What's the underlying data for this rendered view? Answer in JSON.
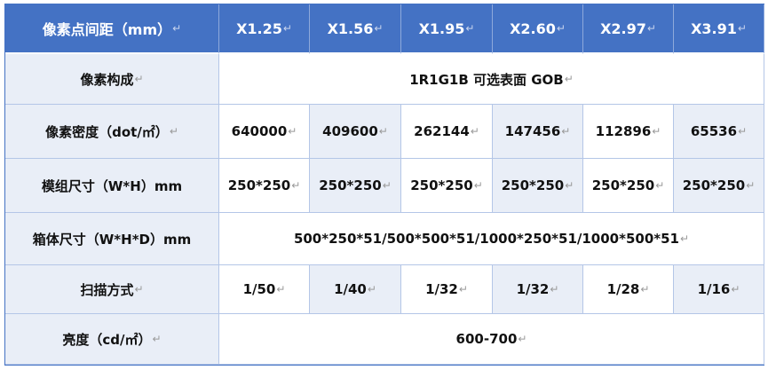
{
  "header": {
    "label": "像素点间距（mm）",
    "columns": [
      "X1.25",
      "X1.56",
      "X1.95",
      "X2.60",
      "X2.97",
      "X3.91"
    ]
  },
  "rows": {
    "composition": {
      "label": "像素构成",
      "value": "1R1G1B 可选表面 GOB"
    },
    "density": {
      "label": "像素密度（dot/㎡）",
      "values": [
        "640000",
        "409600",
        "262144",
        "147456",
        "112896",
        "65536"
      ]
    },
    "module": {
      "label": "模组尺寸（W*H）mm",
      "values": [
        "250*250",
        "250*250",
        "250*250",
        "250*250",
        "250*250",
        "250*250"
      ]
    },
    "cabinet": {
      "label": "箱体尺寸（W*H*D）mm",
      "value": "500*250*51/500*500*51/1000*250*51/1000*500*51"
    },
    "scan": {
      "label": "扫描方式",
      "values": [
        "1/50",
        "1/40",
        "1/32",
        "1/32",
        "1/28",
        "1/16"
      ]
    },
    "brightness": {
      "label": "亮度（cd/㎡）",
      "value": "600-700"
    }
  },
  "colors": {
    "header": "#4472C4",
    "band": "#E9EEF7",
    "border": "#B4C6E7"
  }
}
